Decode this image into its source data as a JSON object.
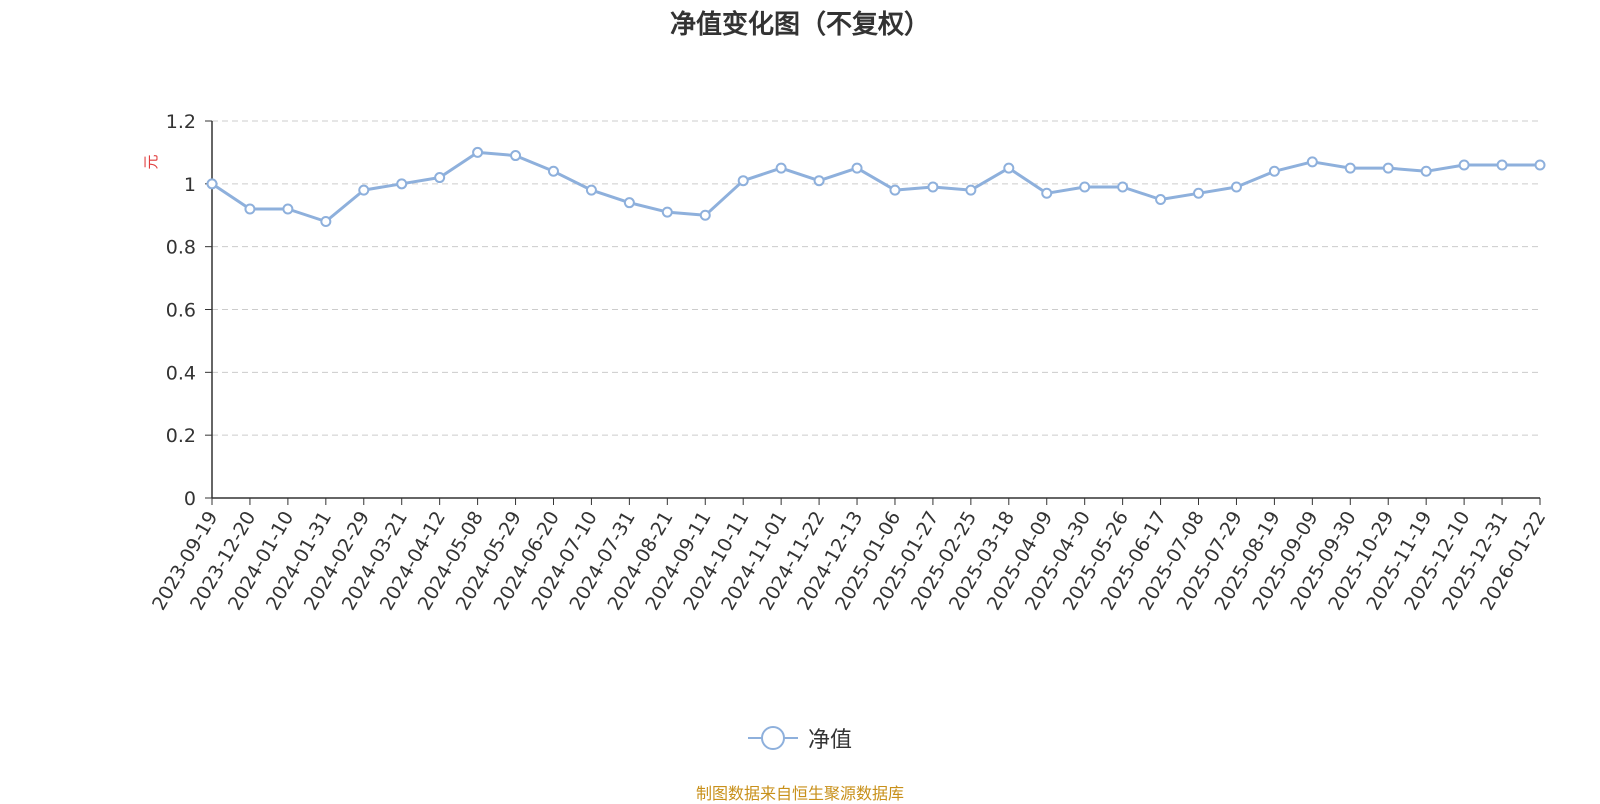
{
  "chart_data": {
    "type": "line",
    "title": "净值变化图（不复权）",
    "ylabel": "元",
    "ylim": [
      0,
      1.2
    ],
    "yticks": [
      "0",
      "0.2",
      "0.4",
      "0.6",
      "0.8",
      "1",
      "1.2"
    ],
    "grid": true,
    "legend_position": "bottom-center",
    "x_tick_labels": [
      "2023-09-19",
      "2023-12-20",
      "2024-01-10",
      "2024-01-31",
      "2024-02-29",
      "2024-03-21",
      "2024-04-12",
      "2024-05-08",
      "2024-05-29",
      "2024-06-20",
      "2024-07-10",
      "2024-07-31",
      "2024-08-21",
      "2024-09-11",
      "2024-10-11",
      "2024-11-01",
      "2024-11-22",
      "2024-12-13",
      "2025-01-06",
      "2025-01-27",
      "2025-02-25",
      "2025-03-18",
      "2025-04-09",
      "2025-04-30",
      "2025-05-26",
      "2025-06-17",
      "2025-07-08",
      "2025-07-29",
      "2025-08-19",
      "2025-09-09",
      "2025-09-30",
      "2025-10-29",
      "2025-11-19",
      "2025-12-10",
      "2025-12-31",
      "2026-01-22"
    ],
    "series": [
      {
        "name": "净值",
        "color": "#8eb0dc",
        "values": [
          1.0,
          0.92,
          0.92,
          0.88,
          0.98,
          1.0,
          1.02,
          1.1,
          1.09,
          1.04,
          0.98,
          0.94,
          0.91,
          0.9,
          1.01,
          1.05,
          1.01,
          1.05,
          0.98,
          0.99,
          0.98,
          1.05,
          0.97,
          0.99,
          0.99,
          0.95,
          0.97,
          0.99,
          1.04,
          1.07,
          1.05,
          1.05,
          1.04,
          1.06,
          1.06,
          1.06
        ]
      }
    ]
  },
  "legend": {
    "label": "净值"
  },
  "footer": {
    "source": "制图数据来自恒生聚源数据库"
  },
  "colors": {
    "line": "#8eb0dc",
    "grid": "#cccccc",
    "axis": "#333333",
    "source": "#c8901a",
    "unit": "#e03c3c"
  }
}
